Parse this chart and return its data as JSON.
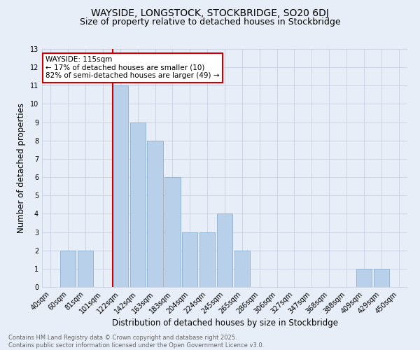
{
  "title1": "WAYSIDE, LONGSTOCK, STOCKBRIDGE, SO20 6DJ",
  "title2": "Size of property relative to detached houses in Stockbridge",
  "xlabel": "Distribution of detached houses by size in Stockbridge",
  "ylabel": "Number of detached properties",
  "bar_labels": [
    "40sqm",
    "60sqm",
    "81sqm",
    "101sqm",
    "122sqm",
    "142sqm",
    "163sqm",
    "183sqm",
    "204sqm",
    "224sqm",
    "245sqm",
    "265sqm",
    "286sqm",
    "306sqm",
    "327sqm",
    "347sqm",
    "368sqm",
    "388sqm",
    "409sqm",
    "429sqm",
    "450sqm"
  ],
  "bar_values": [
    0,
    2,
    2,
    0,
    11,
    9,
    8,
    6,
    3,
    3,
    4,
    2,
    0,
    0,
    0,
    0,
    0,
    0,
    1,
    1,
    0
  ],
  "bar_color": "#b8d0ea",
  "bar_edge_color": "#8ab0d0",
  "vline_index": 4,
  "vline_color": "#cc0000",
  "annotation_text": "WAYSIDE: 115sqm\n← 17% of detached houses are smaller (10)\n82% of semi-detached houses are larger (49) →",
  "annotation_box_color": "#ffffff",
  "annotation_box_edge_color": "#cc0000",
  "ylim": [
    0,
    13
  ],
  "yticks": [
    0,
    1,
    2,
    3,
    4,
    5,
    6,
    7,
    8,
    9,
    10,
    11,
    12,
    13
  ],
  "bg_color": "#e8eef8",
  "grid_color": "#c8d0e0",
  "footer": "Contains HM Land Registry data © Crown copyright and database right 2025.\nContains public sector information licensed under the Open Government Licence v3.0.",
  "title1_fontsize": 10,
  "title2_fontsize": 9,
  "xlabel_fontsize": 8.5,
  "ylabel_fontsize": 8.5,
  "tick_fontsize": 7,
  "annotation_fontsize": 7.5,
  "footer_fontsize": 6
}
